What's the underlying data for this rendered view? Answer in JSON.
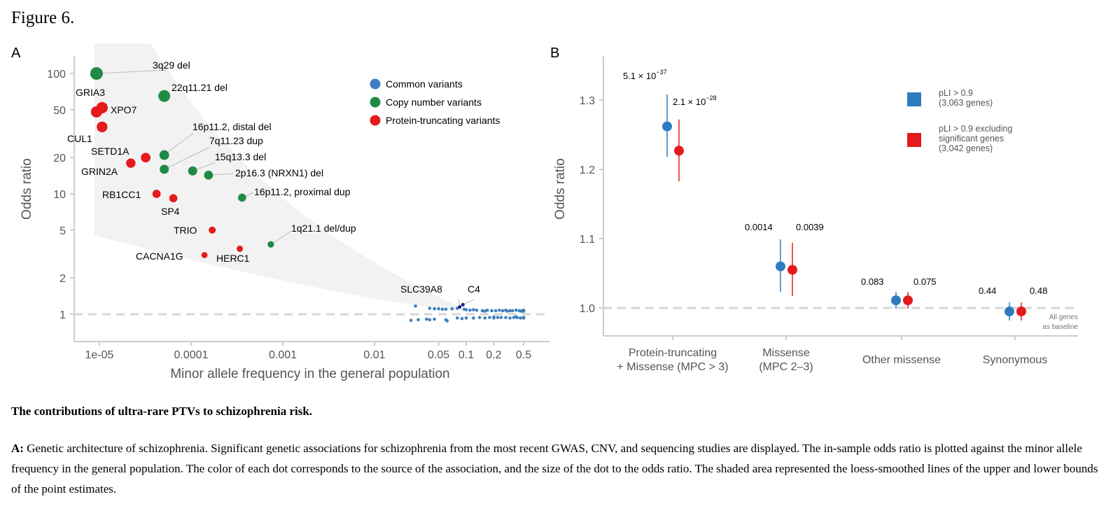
{
  "figure_title": "Figure 6.",
  "caption": {
    "title": "The contributions of ultra-rare PTVs to schizophrenia risk.",
    "label": "A:",
    "text": "Genetic architecture of schizophrenia. Significant genetic associations for schizophrenia from the most recent GWAS, CNV, and sequencing studies are displayed. The in-sample odds ratio is plotted against the minor allele frequency in the general population. The color of each dot corresponds to the source of the association, and the size of the dot to the odds ratio. The shaded area represented the loess-smoothed lines of the upper and lower bounds of the point estimates."
  },
  "chart_data": [
    {
      "panel": "A",
      "type": "scatter",
      "xlabel": "Minor allele frequency in the general population",
      "ylabel": "Odds ratio",
      "x_scale": "log",
      "y_scale": "log",
      "xticks": [
        {
          "v": 1e-05,
          "label": "1e-05"
        },
        {
          "v": 0.0001,
          "label": "0.0001"
        },
        {
          "v": 0.001,
          "label": "0.001"
        },
        {
          "v": 0.01,
          "label": "0.01"
        },
        {
          "v": 0.05,
          "label": "0.05"
        },
        {
          "v": 0.1,
          "label": "0.1"
        },
        {
          "v": 0.2,
          "label": "0.2"
        },
        {
          "v": 0.5,
          "label": "0.5"
        }
      ],
      "yticks": [
        {
          "v": 1,
          "label": "1"
        },
        {
          "v": 2,
          "label": "2"
        },
        {
          "v": 5,
          "label": "5"
        },
        {
          "v": 10,
          "label": "10"
        },
        {
          "v": 20,
          "label": "20"
        },
        {
          "v": 50,
          "label": "50"
        },
        {
          "v": 100,
          "label": "100"
        }
      ],
      "reference_line": 1,
      "legend": {
        "placement": "top-right",
        "items": [
          {
            "label": "Common variants",
            "color": "#3f7fbf"
          },
          {
            "label": "Copy number variants",
            "color": "#1f8a44"
          },
          {
            "label": "Protein-truncating variants",
            "color": "#e41a1c"
          }
        ]
      },
      "colors": {
        "cnv": "#1f8a44",
        "ptv": "#e41a1c",
        "common": "#3f7fbf",
        "common_highlight": "#1a237e",
        "shade": "#f2f2f2"
      },
      "labeled_points": [
        {
          "label": "3q29 del",
          "group": "cnv",
          "maf": 9.3e-06,
          "or": 100
        },
        {
          "label": "22q11.21 del",
          "group": "cnv",
          "maf": 5.1e-05,
          "or": 65
        },
        {
          "label": "GRIA3",
          "group": "ptv",
          "maf": 9.3e-06,
          "or": 48
        },
        {
          "label": "XPO7",
          "group": "ptv",
          "maf": 1.07e-05,
          "or": 52
        },
        {
          "label": "CUL1",
          "group": "ptv",
          "maf": 1.07e-05,
          "or": 36
        },
        {
          "label": "16p11.2, distal del",
          "group": "cnv",
          "maf": 5.1e-05,
          "or": 21
        },
        {
          "label": "7q11.23 dup",
          "group": "cnv",
          "maf": 5.1e-05,
          "or": 16
        },
        {
          "label": "SETD1A",
          "group": "ptv",
          "maf": 3.2e-05,
          "or": 20
        },
        {
          "label": "GRIN2A",
          "group": "ptv",
          "maf": 2.2e-05,
          "or": 18
        },
        {
          "label": "15q13.3 del",
          "group": "cnv",
          "maf": 0.000104,
          "or": 15.5
        },
        {
          "label": "2p16.3 (NRXN1) del",
          "group": "cnv",
          "maf": 0.000155,
          "or": 14.3
        },
        {
          "label": "RB1CC1",
          "group": "ptv",
          "maf": 4.2e-05,
          "or": 10
        },
        {
          "label": "SP4",
          "group": "ptv",
          "maf": 6.4e-05,
          "or": 9.2
        },
        {
          "label": "16p11.2, proximal dup",
          "group": "cnv",
          "maf": 0.00036,
          "or": 9.3
        },
        {
          "label": "TRIO",
          "group": "ptv",
          "maf": 0.00017,
          "or": 5
        },
        {
          "label": "1q21.1 del/dup",
          "group": "cnv",
          "maf": 0.00074,
          "or": 3.8
        },
        {
          "label": "HERC1",
          "group": "ptv",
          "maf": 0.00034,
          "or": 3.5
        },
        {
          "label": "CACNA1G",
          "group": "ptv",
          "maf": 0.00014,
          "or": 3.1
        },
        {
          "label": "SLC39A8",
          "group": "common_highlight",
          "maf": 0.085,
          "or": 1.15
        },
        {
          "label": "C4",
          "group": "common_highlight",
          "maf": 0.092,
          "or": 1.2
        }
      ],
      "common_points": [
        [
          0.028,
          1.17
        ],
        [
          0.04,
          1.12
        ],
        [
          0.045,
          1.11
        ],
        [
          0.05,
          1.11
        ],
        [
          0.055,
          1.1
        ],
        [
          0.06,
          1.1
        ],
        [
          0.07,
          1.11
        ],
        [
          0.08,
          1.12
        ],
        [
          0.095,
          1.1
        ],
        [
          0.1,
          1.09
        ],
        [
          0.11,
          1.08
        ],
        [
          0.12,
          1.09
        ],
        [
          0.13,
          1.08
        ],
        [
          0.15,
          1.07
        ],
        [
          0.17,
          1.08
        ],
        [
          0.19,
          1.07
        ],
        [
          0.21,
          1.07
        ],
        [
          0.23,
          1.08
        ],
        [
          0.25,
          1.07
        ],
        [
          0.27,
          1.08
        ],
        [
          0.3,
          1.07
        ],
        [
          0.32,
          1.07
        ],
        [
          0.35,
          1.08
        ],
        [
          0.38,
          1.07
        ],
        [
          0.41,
          1.07
        ],
        [
          0.44,
          1.08
        ],
        [
          0.47,
          1.07
        ],
        [
          0.5,
          1.07
        ],
        [
          0.16,
          1.06
        ],
        [
          0.28,
          1.06
        ],
        [
          0.4,
          1.06
        ],
        [
          0.49,
          1.06
        ],
        [
          0.025,
          0.89
        ],
        [
          0.03,
          0.9
        ],
        [
          0.037,
          0.91
        ],
        [
          0.04,
          0.9
        ],
        [
          0.045,
          0.91
        ],
        [
          0.06,
          0.9
        ],
        [
          0.062,
          0.88
        ],
        [
          0.08,
          0.93
        ],
        [
          0.09,
          0.92
        ],
        [
          0.1,
          0.93
        ],
        [
          0.12,
          0.93
        ],
        [
          0.14,
          0.94
        ],
        [
          0.16,
          0.93
        ],
        [
          0.18,
          0.94
        ],
        [
          0.2,
          0.93
        ],
        [
          0.22,
          0.94
        ],
        [
          0.24,
          0.94
        ],
        [
          0.27,
          0.94
        ],
        [
          0.3,
          0.93
        ],
        [
          0.33,
          0.94
        ],
        [
          0.36,
          0.94
        ],
        [
          0.39,
          0.93
        ],
        [
          0.42,
          0.94
        ],
        [
          0.45,
          0.94
        ],
        [
          0.48,
          0.93
        ],
        [
          0.5,
          0.94
        ],
        [
          0.2,
          0.95
        ],
        [
          0.35,
          0.95
        ]
      ]
    },
    {
      "panel": "B",
      "type": "scatter",
      "ylabel": "Odds ratio",
      "ylim": [
        0.965,
        1.335
      ],
      "yticks": [
        {
          "v": 1.0,
          "label": "1.0"
        },
        {
          "v": 1.1,
          "label": "1.1"
        },
        {
          "v": 1.2,
          "label": "1.2"
        },
        {
          "v": 1.3,
          "label": "1.3"
        }
      ],
      "reference_line": 1.0,
      "reference_label": [
        "All genes",
        "as baseline"
      ],
      "categories": [
        [
          "Protein-truncating",
          "+ Missense (MPC > 3)"
        ],
        [
          "Missense",
          "(MPC 2–3)"
        ],
        [
          "Other missense"
        ],
        [
          "Synonymous"
        ]
      ],
      "legend": {
        "placement": "top-right",
        "items": [
          {
            "lines": [
              "pLI > 0.9",
              "(3,063 genes)"
            ],
            "color": "#2f7bbf"
          },
          {
            "lines": [
              "pLI > 0.9 excluding",
              "significant genes",
              "(3,042 genes)"
            ],
            "color": "#e41a1c"
          }
        ]
      },
      "series": [
        {
          "name": "pLI > 0.9 (3,063 genes)",
          "color": "#2f7bbf",
          "values": [
            1.262,
            1.06,
            1.011,
            0.995
          ],
          "ci_low": [
            1.218,
            1.023,
            0.999,
            0.982
          ],
          "ci_high": [
            1.308,
            1.099,
            1.023,
            1.008
          ],
          "p_labels": [
            [
              "5.1 × 10",
              "−37"
            ],
            [
              "0.0014"
            ],
            [
              "0.083"
            ],
            [
              "0.44"
            ]
          ]
        },
        {
          "name": "pLI > 0.9 excluding significant genes (3,042 genes)",
          "color": "#e41a1c",
          "values": [
            1.227,
            1.055,
            1.011,
            0.995
          ],
          "ci_low": [
            1.183,
            1.017,
            0.999,
            0.982
          ],
          "ci_high": [
            1.272,
            1.094,
            1.023,
            1.008
          ],
          "p_labels": [
            [
              "2.1 × 10",
              "−28"
            ],
            [
              "0.0039"
            ],
            [
              "0.075"
            ],
            [
              "0.48"
            ]
          ]
        }
      ]
    }
  ]
}
